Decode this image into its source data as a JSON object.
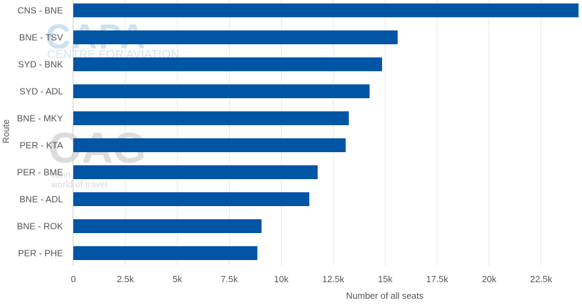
{
  "chart_data": {
    "type": "bar",
    "orientation": "horizontal",
    "categories": [
      "CNS - BNE",
      "BNE - TSV",
      "SYD - BNK",
      "SYD - ADL",
      "BNE - MKY",
      "PER - KTA",
      "PER - BME",
      "BNE - ADL",
      "BNE - ROK",
      "PER - PHE"
    ],
    "values": [
      24300,
      15600,
      14850,
      14250,
      13250,
      13100,
      11750,
      11350,
      9050,
      8850
    ],
    "xlabel": "Number of all seats",
    "ylabel": "Route",
    "xlim": [
      0,
      24300
    ],
    "x_ticks": [
      0,
      2500,
      5000,
      7500,
      10000,
      12500,
      15000,
      17500,
      20000,
      22500
    ],
    "x_tick_labels": [
      "0",
      "2.5k",
      "5k",
      "7.5k",
      "10k",
      "12.5k",
      "15k",
      "17.5k",
      "20k",
      "22.5k"
    ],
    "bar_color": "#0055a5",
    "grid": "vertical"
  },
  "watermarks": {
    "capa_logo": "CAPA",
    "capa_tagline": "CENTRE FOR AVIATION",
    "oag_logo": "OAG",
    "oag_tagline_1": "conn",
    "oag_tagline_2": "world of travel"
  }
}
